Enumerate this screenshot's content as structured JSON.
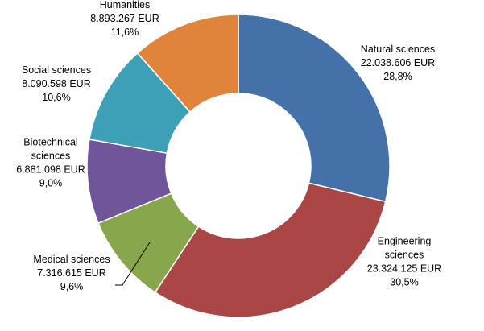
{
  "chart_data": {
    "type": "pie",
    "variant": "donut",
    "title": "",
    "slices": [
      {
        "name": "Natural sciences",
        "label_lines": [
          "Natural sciences"
        ],
        "amount": "22.038.606 EUR",
        "value": 22038606,
        "percent": "28,8%",
        "color": "#4472a8"
      },
      {
        "name": "Engineering sciences",
        "label_lines": [
          "Engineering",
          "sciences"
        ],
        "amount": "23.324.125 EUR",
        "value": 23324125,
        "percent": "30,5%",
        "color": "#a94646"
      },
      {
        "name": "Medical sciences",
        "label_lines": [
          "Medical sciences"
        ],
        "amount": "7.316.615 EUR",
        "value": 7316615,
        "percent": "9,6%",
        "color": "#88a74c"
      },
      {
        "name": "Biotechnical sciences",
        "label_lines": [
          "Biotechnical",
          "sciences"
        ],
        "amount": "6.881.098 EUR",
        "value": 6881098,
        "percent": "9,0%",
        "color": "#70559a"
      },
      {
        "name": "Social sciences",
        "label_lines": [
          "Social sciences"
        ],
        "amount": "8.090.598 EUR",
        "value": 8090598,
        "percent": "10,6%",
        "color": "#3ea0b6"
      },
      {
        "name": "Humanities",
        "label_lines": [
          "Humanities"
        ],
        "amount": "8.893.267 EUR",
        "value": 8893267,
        "percent": "11,6%",
        "color": "#e0843c"
      }
    ],
    "start": "top",
    "direction": "clockwise",
    "legend": "none"
  }
}
